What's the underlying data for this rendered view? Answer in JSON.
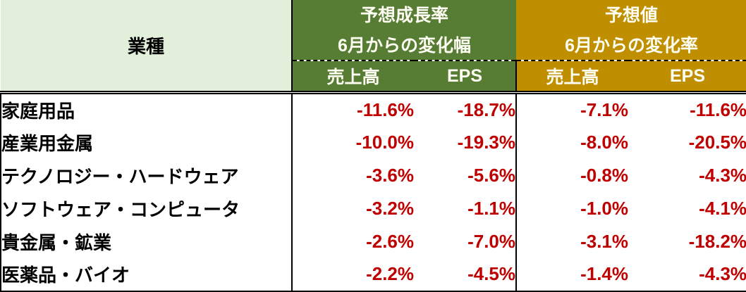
{
  "colors": {
    "light_green": "#e2efda",
    "dark_green": "#567d33",
    "gold": "#bf8f00",
    "dark_red": "#c00000",
    "header_text": "#fffef5",
    "body_text": "#000000"
  },
  "table": {
    "industry_header": "業種",
    "group_growth": {
      "title": "予想成長率",
      "subtitle": "6月からの変化幅",
      "col_sales": "売上高",
      "col_eps": "EPS"
    },
    "group_forecast": {
      "title": "予想値",
      "subtitle": "6月からの変化率",
      "col_sales": "売上高",
      "col_eps": "EPS"
    },
    "rows": [
      {
        "label": "家庭用品",
        "values": [
          "-11.6%",
          "-18.7%",
          "-7.1%",
          "-11.6%"
        ]
      },
      {
        "label": "産業用金属",
        "values": [
          "-10.0%",
          "-19.3%",
          "-8.0%",
          "-20.5%"
        ]
      },
      {
        "label": "テクノロジー・ハードウェア",
        "values": [
          "-3.6%",
          "-5.6%",
          "-0.8%",
          "-4.3%"
        ]
      },
      {
        "label": "ソフトウェア・コンピュータ",
        "values": [
          "-3.2%",
          "-1.1%",
          "-1.0%",
          "-4.1%"
        ]
      },
      {
        "label": "貴金属・鉱業",
        "values": [
          "-2.6%",
          "-7.0%",
          "-3.1%",
          "-18.2%"
        ]
      },
      {
        "label": "医薬品・バイオ",
        "values": [
          "-2.2%",
          "-4.5%",
          "-1.4%",
          "-4.3%"
        ]
      }
    ]
  },
  "chart_data": {
    "type": "table",
    "title": "",
    "categories": [
      "家庭用品",
      "産業用金属",
      "テクノロジー・ハードウェア",
      "ソフトウェア・コンピュータ",
      "貴金属・鉱業",
      "医薬品・バイオ"
    ],
    "unit": "%",
    "column_groups": [
      "予想成長率 6月からの変化幅",
      "予想値 6月からの変化率"
    ],
    "series": [
      {
        "name": "予想成長率 6月からの変化幅 売上高",
        "values": [
          -11.6,
          -10.0,
          -3.6,
          -3.2,
          -2.6,
          -2.2
        ]
      },
      {
        "name": "予想成長率 6月からの変化幅 EPS",
        "values": [
          -18.7,
          -19.3,
          -5.6,
          -1.1,
          -7.0,
          -4.5
        ]
      },
      {
        "name": "予想値 6月からの変化率 売上高",
        "values": [
          -7.1,
          -8.0,
          -0.8,
          -1.0,
          -3.1,
          -1.4
        ]
      },
      {
        "name": "予想値 6月からの変化率 EPS",
        "values": [
          -11.6,
          -20.5,
          -4.3,
          -4.1,
          -18.2,
          -4.3
        ]
      }
    ]
  }
}
